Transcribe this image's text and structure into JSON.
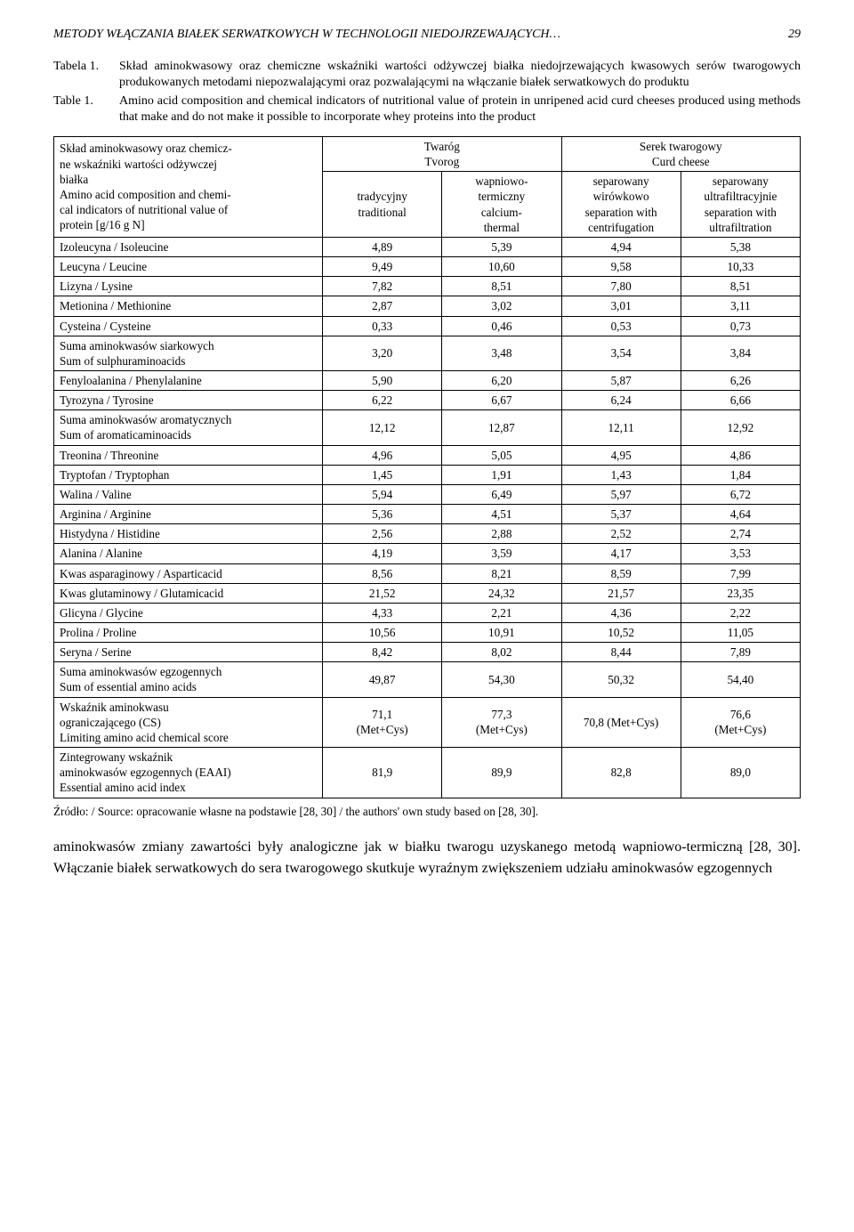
{
  "header": {
    "running_title": "METODY WŁĄCZANIA BIAŁEK SERWATKOWYCH W TECHNOLOGII NIEDOJRZEWAJĄCYCH…",
    "page_number": "29"
  },
  "captions": {
    "tabela_label": "Tabela 1.",
    "tabela_text": "Skład aminokwasowy oraz chemiczne wskaźniki wartości odżywczej białka niedojrzewających kwasowych serów twarogowych produkowanych metodami niepozwalającymi oraz pozwalającymi na włączanie białek serwatkowych do produktu",
    "table_label": "Table 1.",
    "table_text": "Amino acid composition and chemical indicators of nutritional value of protein in unripened acid curd cheeses produced using methods that make and do not make it possible to incorporate whey proteins into the product"
  },
  "table": {
    "header": {
      "col0_line1": "Skład aminokwasowy oraz chemicz-",
      "col0_line2": "ne wskaźniki wartości odżywczej",
      "col0_line3": "białka",
      "col0_line4": "Amino acid composition and chemi-",
      "col0_line5": "cal indicators of nutritional value of",
      "col0_line6": "protein [g/16 g N]",
      "twarog_line1": "Twaróg",
      "twarog_line2": "Tvorog",
      "serek_line1": "Serek twarogowy",
      "serek_line2": "Curd cheese",
      "tradycyjny_line1": "tradycyjny",
      "tradycyjny_line2": "traditional",
      "wapniowo_line1": "wapniowo-",
      "wapniowo_line2": "termiczny",
      "wapniowo_line3": "calcium-",
      "wapniowo_line4": "thermal",
      "wirowkowo_line1": "separowany",
      "wirowkowo_line2": "wirówkowo",
      "wirowkowo_line3": "separation with",
      "wirowkowo_line4": "centrifugation",
      "ultrafilt_line1": "separowany",
      "ultrafilt_line2": "ultrafiltracyjnie",
      "ultrafilt_line3": "separation with",
      "ultrafilt_line4": "ultrafiltration"
    },
    "rows": [
      {
        "label": "Izoleucyna / Isoleucine",
        "v1": "4,89",
        "v2": "5,39",
        "v3": "4,94",
        "v4": "5,38"
      },
      {
        "label": "Leucyna / Leucine",
        "v1": "9,49",
        "v2": "10,60",
        "v3": "9,58",
        "v4": "10,33"
      },
      {
        "label": "Lizyna / Lysine",
        "v1": "7,82",
        "v2": "8,51",
        "v3": "7,80",
        "v4": "8,51"
      },
      {
        "label": "Metionina / Methionine",
        "v1": "2,87",
        "v2": "3,02",
        "v3": "3,01",
        "v4": "3,11"
      },
      {
        "label": "Cysteina / Cysteine",
        "v1": "0,33",
        "v2": "0,46",
        "v3": "0,53",
        "v4": "0,73"
      },
      {
        "label": "Suma aminokwasów siarkowych\nSum of sulphuraminoacids",
        "v1": "3,20",
        "v2": "3,48",
        "v3": "3,54",
        "v4": "3,84"
      },
      {
        "label": "Fenyloalanina / Phenylalanine",
        "v1": "5,90",
        "v2": "6,20",
        "v3": "5,87",
        "v4": "6,26"
      },
      {
        "label": "Tyrozyna / Tyrosine",
        "v1": "6,22",
        "v2": "6,67",
        "v3": "6,24",
        "v4": "6,66"
      },
      {
        "label": "Suma aminokwasów aromatycznych\nSum of aromaticaminoacids",
        "v1": "12,12",
        "v2": "12,87",
        "v3": "12,11",
        "v4": "12,92"
      },
      {
        "label": "Treonina / Threonine",
        "v1": "4,96",
        "v2": "5,05",
        "v3": "4,95",
        "v4": "4,86"
      },
      {
        "label": "Tryptofan / Tryptophan",
        "v1": "1,45",
        "v2": "1,91",
        "v3": "1,43",
        "v4": "1,84"
      },
      {
        "label": "Walina / Valine",
        "v1": "5,94",
        "v2": "6,49",
        "v3": "5,97",
        "v4": "6,72"
      },
      {
        "label": "Arginina / Arginine",
        "v1": "5,36",
        "v2": "4,51",
        "v3": "5,37",
        "v4": "4,64"
      },
      {
        "label": "Histydyna / Histidine",
        "v1": "2,56",
        "v2": "2,88",
        "v3": "2,52",
        "v4": "2,74"
      },
      {
        "label": "Alanina / Alanine",
        "v1": "4,19",
        "v2": "3,59",
        "v3": "4,17",
        "v4": "3,53"
      },
      {
        "label": "Kwas asparaginowy / Asparticacid",
        "v1": "8,56",
        "v2": "8,21",
        "v3": "8,59",
        "v4": "7,99"
      },
      {
        "label": "Kwas glutaminowy / Glutamicacid",
        "v1": "21,52",
        "v2": "24,32",
        "v3": "21,57",
        "v4": "23,35"
      },
      {
        "label": "Glicyna / Glycine",
        "v1": "4,33",
        "v2": "2,21",
        "v3": "4,36",
        "v4": "2,22"
      },
      {
        "label": "Prolina / Proline",
        "v1": "10,56",
        "v2": "10,91",
        "v3": "10,52",
        "v4": "11,05"
      },
      {
        "label": "Seryna / Serine",
        "v1": "8,42",
        "v2": "8,02",
        "v3": "8,44",
        "v4": "7,89"
      },
      {
        "label": "Suma aminokwasów egzogennych\nSum of essential amino acids",
        "v1": "49,87",
        "v2": "54,30",
        "v3": "50,32",
        "v4": "54,40"
      },
      {
        "label": "Wskaźnik aminokwasu\nograniczającego (CS)\nLimiting amino acid chemical score",
        "v1": "71,1\n(Met+Cys)",
        "v2": "77,3\n(Met+Cys)",
        "v3": "70,8 (Met+Cys)",
        "v4": "76,6\n(Met+Cys)"
      },
      {
        "label": "Zintegrowany wskaźnik\naminokwasów egzogennych (EAAI)\nEssential amino acid index",
        "v1": "81,9",
        "v2": "89,9",
        "v3": "82,8",
        "v4": "89,0"
      }
    ]
  },
  "source": "Źródło: / Source: opracowanie własne na podstawie [28, 30] / the authors' own study based on [28, 30].",
  "body_text": "aminokwasów zmiany zawartości były analogiczne jak w białku twarogu uzyskanego metodą wapniowo-termiczną [28, 30]. Włączanie białek serwatkowych do sera twarogowego skutkuje wyraźnym zwiększeniem udziału aminokwasów egzogennych"
}
